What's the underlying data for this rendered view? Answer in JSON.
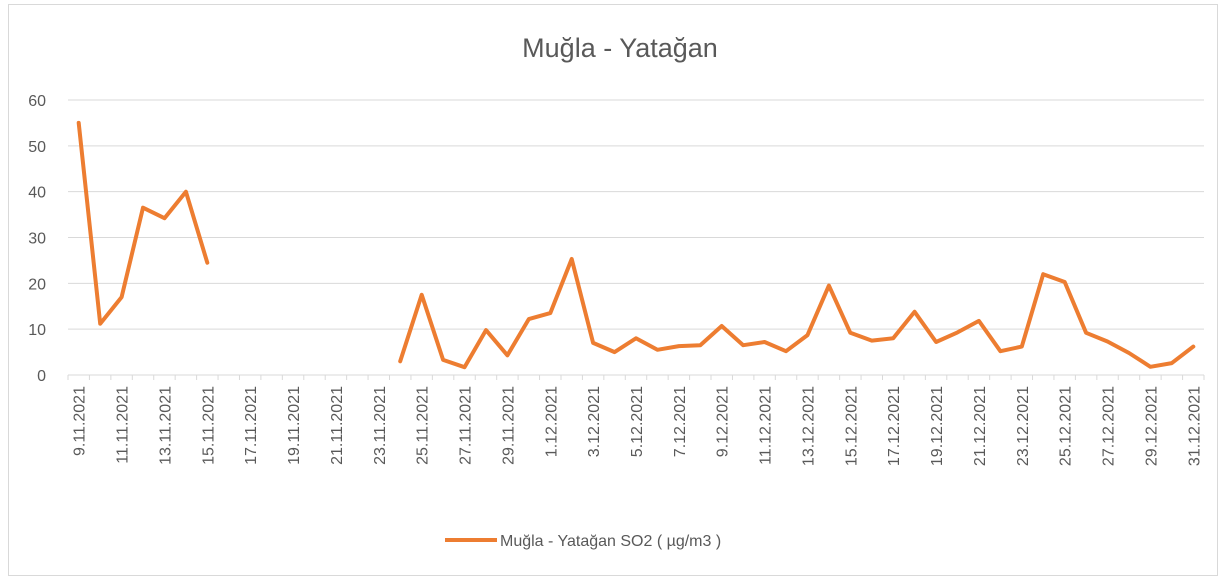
{
  "chart_data": {
    "type": "line",
    "title": "Muğla - Yatağan",
    "categories": [
      "9.11.2021",
      null,
      "11.11.2021",
      null,
      "13.11.2021",
      null,
      "15.11.2021",
      null,
      "17.11.2021",
      null,
      "19.11.2021",
      null,
      "21.11.2021",
      null,
      "23.11.2021",
      null,
      "25.11.2021",
      null,
      "27.11.2021",
      null,
      "29.11.2021",
      null,
      "1.12.2021",
      null,
      "3.12.2021",
      null,
      "5.12.2021",
      null,
      "7.12.2021",
      null,
      "9.12.2021",
      null,
      "11.12.2021",
      null,
      "13.12.2021",
      null,
      "15.12.2021",
      null,
      "17.12.2021",
      null,
      "19.12.2021",
      null,
      "21.12.2021",
      null,
      "23.12.2021",
      null,
      "25.12.2021",
      null,
      "27.12.2021",
      null,
      "29.12.2021",
      null,
      "31.12.2021"
    ],
    "series": [
      {
        "name": "Muğla - Yatağan SO2 ( µg/m3 )",
        "color": "#ed7d31",
        "values": [
          55,
          11.2,
          17,
          36.5,
          34.2,
          40,
          24.5,
          null,
          null,
          null,
          null,
          null,
          null,
          null,
          null,
          3,
          17.5,
          3.3,
          1.7,
          9.8,
          4.3,
          12.2,
          13.5,
          25.3,
          7,
          5,
          8,
          5.5,
          6.3,
          6.5,
          10.7,
          6.5,
          7.2,
          5.2,
          8.7,
          19.5,
          9.2,
          7.5,
          8,
          13.8,
          7.2,
          9.3,
          11.8,
          5.2,
          6.2,
          22,
          20.3,
          9.2,
          7.3,
          4.8,
          1.8,
          2.6,
          6.2
        ]
      }
    ],
    "ylim": [
      0,
      60
    ],
    "yticks": [
      0,
      10,
      20,
      30,
      40,
      50,
      60
    ],
    "grid": true,
    "legend": "bottom"
  }
}
